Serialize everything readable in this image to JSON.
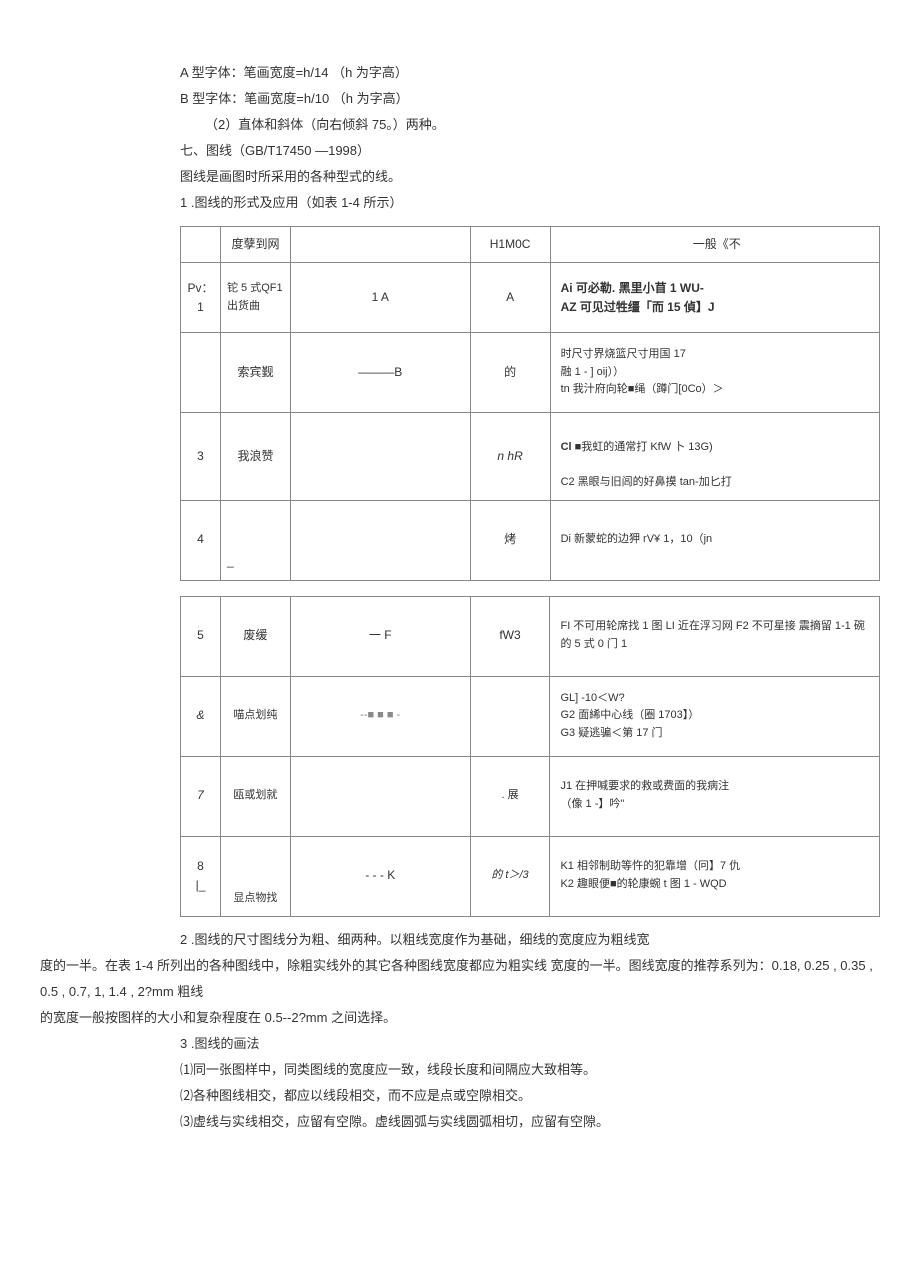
{
  "lines": {
    "l1": "A 型字体：笔画宽度=h/14 （h 为字高）",
    "l2": "B 型字体：笔画宽度=h/10 （h 为字高）",
    "l3": "（2）直体和斜体（向右倾斜 75。）两种。",
    "l4": "七、图线（GB/T17450 —1998）",
    "l5": "图线是画图时所采用的各种型式的线。",
    "l6": "1 .图线的形式及应用（如表 1-4 所示）",
    "l7": "2 .图线的尺寸图线分为粗、细两种。以粗线宽度作为基础，细线的宽度应为粗线宽",
    "l8": "度的一半。在表 1-4 所列出的各种图线中，除粗实线外的其它各种图线宽度都应为粗实线 宽度的一半。图线宽度的推荐系列为：0.18, 0.25 , 0.35 , 0.5 , 0.7, 1, 1.4 , 2?mm 粗线",
    "l9": "的宽度一般按图样的大小和复杂程度在 0.5--2?mm 之间选择。",
    "l10": "3 .图线的画法",
    "l11": "⑴同一张图样中，同类图线的宽度应一致，线段长度和间隔应大致相等。",
    "l12": "⑵各种图线相交，都应以线段相交，而不应是点或空隙相交。",
    "l13": "⑶虚线与实线相交，应留有空隙。虚线圆弧与实线圆弧相切，应留有空隙。"
  },
  "table1": {
    "header": {
      "c1": "度孽到网",
      "c3": "H1M0C",
      "c4": "一般《不"
    },
    "rows": [
      {
        "c0": "Pv：\n1",
        "c1": "铊 5 式QF1\n出货曲",
        "c2": "1  A",
        "c3": "A",
        "c4a": "Ai 可必勒. 黑里小苜 1 WU-",
        "c4b": "AZ 可见过牲缰「而 15 偵】J"
      },
      {
        "c0": "",
        "c1": "索宾觐",
        "c2": "———B",
        "c3": "的",
        "c4": "时尺寸界烧篮尺寸用国 17\n融 1 - ] oij））\ntn 我汁府向轮■绳（蹲门[0Co）＞"
      },
      {
        "c0": "3",
        "c1": "我浪赞",
        "c2": "",
        "c3": "n  hR",
        "c4": "Cl ■我虹的通常打 KfW 卜 13G)\nC2 黑眼与旧闾的好鼻摸 tan-加匕打"
      },
      {
        "c0": "4",
        "c1": "_",
        "c2": "",
        "c3": "烤",
        "c4": "Di 新蒙蛇的边狎 rV¥ 1，10（jn"
      }
    ]
  },
  "table2": {
    "rows": [
      {
        "c0": "5",
        "c1": "废缓",
        "c2": "一 F",
        "c3": "fW3",
        "c4": "  FI 不可用轮席找 1 图 LI 近在浮习网 F2 不可星接 震摘留 1-1 碗的 5 式 0 门 1"
      },
      {
        "c0": "&",
        "c1": "喵点划纯",
        "c2": "--■ ■ ■ -",
        "c3": "",
        "c4": "GL] -10＜W?\nG2 面絺中心线（圈 1703】）\nG3 疑逃骗＜第 17 门"
      },
      {
        "c0": "7",
        "c1": "瓯或划就",
        "c2": "",
        "c3": ". 展",
        "c4": "J1 在押喊要求的救或费面的我病注\n    （像 1 -】吟\""
      },
      {
        "c0": "8\n|_",
        "c1": "显点物找",
        "c2": "- - - K",
        "c3": "的  t＞/3",
        "c4": "K1 相邻制助等忤的犯靠增（冋】7 仇\nK2 趣眼便■的轮康蜿 t 图 1 - WQD"
      }
    ]
  }
}
